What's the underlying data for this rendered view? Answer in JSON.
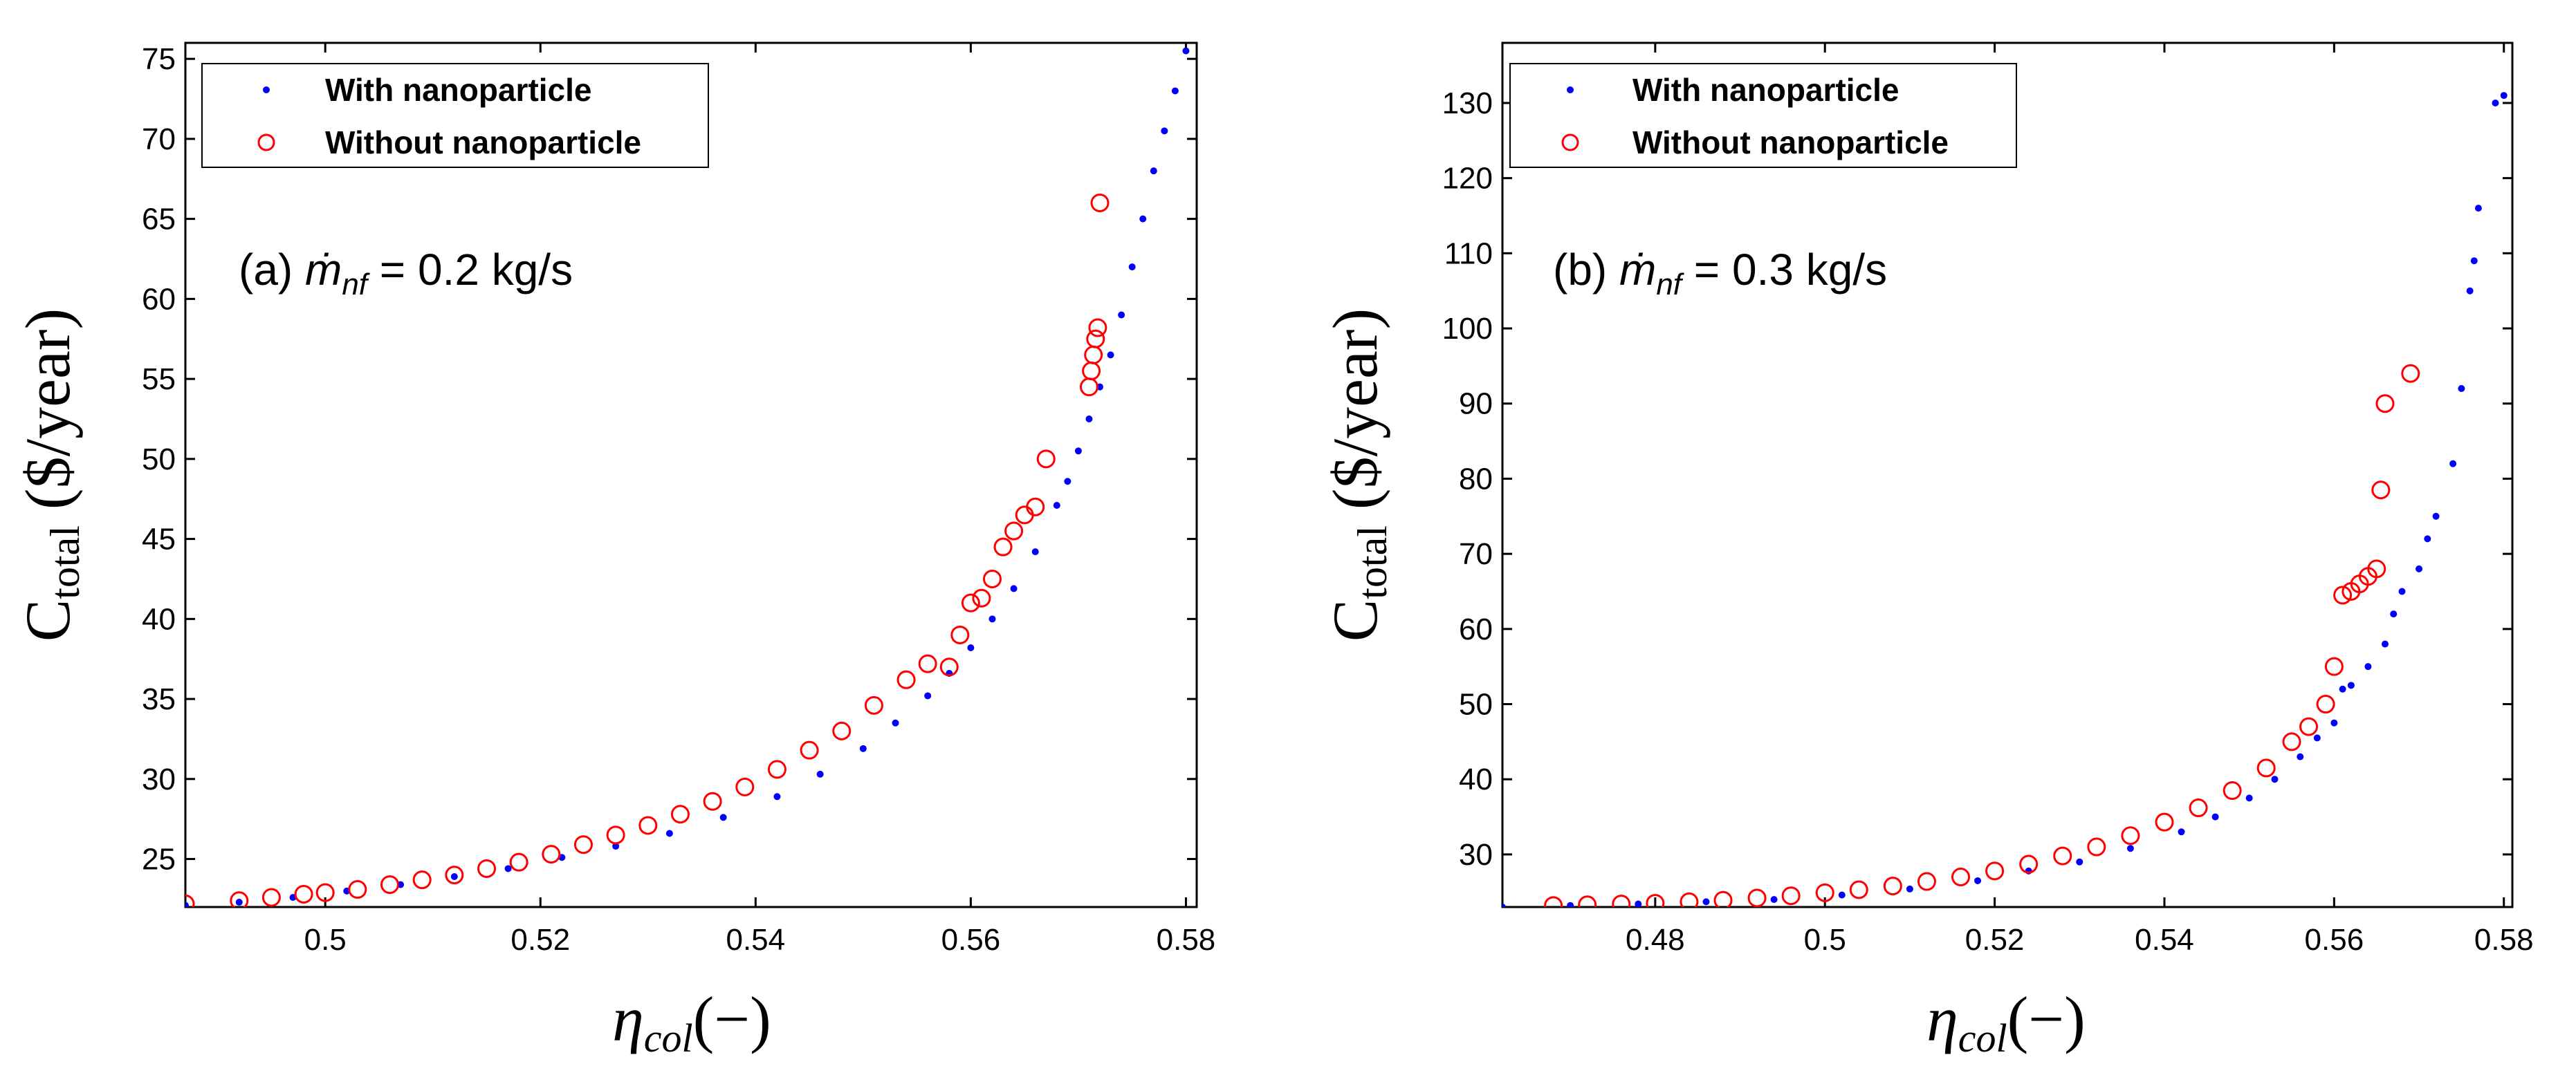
{
  "chart_data": [
    {
      "type": "scatter",
      "panel": "a",
      "annotation": {
        "prefix": "(a) ",
        "symbol": "ṁ",
        "subscript": "nf",
        "suffix": " = 0.2 kg/s"
      },
      "xlabel": {
        "symbol": "η",
        "subscript": "col",
        "unit": "(−)"
      },
      "ylabel": {
        "main": "C",
        "subscript": "total",
        "unit": " ($/year)"
      },
      "xlim": [
        0.487,
        0.581
      ],
      "ylim": [
        22,
        76
      ],
      "xticks": [
        0.5,
        0.52,
        0.54,
        0.56,
        0.58
      ],
      "xtick_labels": [
        "0.5",
        "0.52",
        "0.54",
        "0.56",
        "0.58"
      ],
      "yticks": [
        25,
        30,
        35,
        40,
        45,
        50,
        55,
        60,
        65,
        70,
        75
      ],
      "ytick_labels": [
        "25",
        "30",
        "35",
        "40",
        "45",
        "50",
        "55",
        "60",
        "65",
        "70",
        "75"
      ],
      "legend": [
        "With nanoparticle",
        "Without nanoparticle"
      ],
      "legend_position": "top-left",
      "series": [
        {
          "name": "With nanoparticle",
          "marker": "dot",
          "color": "#0000ff",
          "x": [
            0.487,
            0.492,
            0.497,
            0.502,
            0.507,
            0.512,
            0.517,
            0.522,
            0.527,
            0.532,
            0.537,
            0.542,
            0.546,
            0.55,
            0.553,
            0.556,
            0.558,
            0.56,
            0.562,
            0.564,
            0.566,
            0.568,
            0.569,
            0.57,
            0.571,
            0.572,
            0.573,
            0.574,
            0.575,
            0.576,
            0.577,
            0.578,
            0.579,
            0.58
          ],
          "y": [
            22.1,
            22.3,
            22.6,
            23.0,
            23.4,
            23.9,
            24.4,
            25.1,
            25.8,
            26.6,
            27.6,
            28.9,
            30.3,
            31.9,
            33.5,
            35.2,
            36.6,
            38.2,
            40.0,
            41.9,
            44.2,
            47.1,
            48.6,
            50.5,
            52.5,
            54.5,
            56.5,
            59.0,
            62.0,
            65.0,
            68.0,
            70.5,
            73.0,
            75.5
          ]
        },
        {
          "name": "Without nanoparticle",
          "marker": "circle",
          "color": "#ff0000",
          "x": [
            0.487,
            0.492,
            0.495,
            0.498,
            0.5,
            0.503,
            0.506,
            0.509,
            0.512,
            0.515,
            0.518,
            0.521,
            0.524,
            0.527,
            0.53,
            0.533,
            0.536,
            0.539,
            0.542,
            0.545,
            0.548,
            0.551,
            0.554,
            0.556,
            0.558,
            0.559,
            0.56,
            0.561,
            0.562,
            0.563,
            0.564,
            0.565,
            0.566,
            0.567,
            0.571,
            0.5712,
            0.5714,
            0.5716,
            0.5718,
            0.572
          ],
          "y": [
            22.2,
            22.4,
            22.6,
            22.8,
            22.9,
            23.1,
            23.4,
            23.7,
            24.0,
            24.4,
            24.8,
            25.3,
            25.9,
            26.5,
            27.1,
            27.8,
            28.6,
            29.5,
            30.6,
            31.8,
            33.0,
            34.6,
            36.2,
            37.2,
            37.0,
            39.0,
            41.0,
            41.3,
            42.5,
            44.5,
            45.5,
            46.5,
            47.0,
            50.0,
            54.5,
            55.5,
            56.5,
            57.5,
            58.2,
            66.0
          ]
        }
      ]
    },
    {
      "type": "scatter",
      "panel": "b",
      "annotation": {
        "prefix": "(b) ",
        "symbol": "ṁ",
        "subscript": "nf",
        "suffix": " = 0.3 kg/s"
      },
      "xlabel": {
        "symbol": "η",
        "subscript": "col",
        "unit": "(−)"
      },
      "ylabel": {
        "main": "C",
        "subscript": "total",
        "unit": " ($/year)"
      },
      "xlim": [
        0.462,
        0.581
      ],
      "ylim": [
        23,
        138
      ],
      "xticks": [
        0.48,
        0.5,
        0.52,
        0.54,
        0.56,
        0.58
      ],
      "xtick_labels": [
        "0.48",
        "0.5",
        "0.52",
        "0.54",
        "0.56",
        "0.58"
      ],
      "yticks": [
        30,
        40,
        50,
        60,
        70,
        80,
        90,
        100,
        110,
        120,
        130
      ],
      "ytick_labels": [
        "30",
        "40",
        "50",
        "60",
        "70",
        "80",
        "90",
        "100",
        "110",
        "120",
        "130"
      ],
      "legend": [
        "With nanoparticle",
        "Without nanoparticle"
      ],
      "legend_position": "top-left",
      "series": [
        {
          "name": "With nanoparticle",
          "marker": "dot",
          "color": "#0000ff",
          "x": [
            0.462,
            0.47,
            0.478,
            0.486,
            0.494,
            0.502,
            0.51,
            0.518,
            0.524,
            0.53,
            0.536,
            0.542,
            0.546,
            0.55,
            0.553,
            0.556,
            0.558,
            0.56,
            0.561,
            0.562,
            0.564,
            0.566,
            0.567,
            0.568,
            0.57,
            0.571,
            0.572,
            0.574,
            0.575,
            0.576,
            0.5765,
            0.577,
            0.579,
            0.58
          ],
          "y": [
            23.0,
            23.2,
            23.4,
            23.7,
            24.0,
            24.6,
            25.4,
            26.5,
            27.8,
            29.0,
            30.8,
            33.0,
            35.0,
            37.5,
            40.0,
            43.0,
            45.5,
            47.5,
            52.0,
            52.5,
            55.0,
            58.0,
            62.0,
            65.0,
            68.0,
            72.0,
            75.0,
            82.0,
            92.0,
            105.0,
            109.0,
            116.0,
            130.0,
            131.0
          ]
        },
        {
          "name": "Without nanoparticle",
          "marker": "circle",
          "color": "#ff0000",
          "x": [
            0.468,
            0.472,
            0.476,
            0.48,
            0.484,
            0.488,
            0.492,
            0.496,
            0.5,
            0.504,
            0.508,
            0.512,
            0.516,
            0.52,
            0.524,
            0.528,
            0.532,
            0.536,
            0.54,
            0.544,
            0.548,
            0.552,
            0.555,
            0.557,
            0.559,
            0.56,
            0.561,
            0.562,
            0.563,
            0.564,
            0.565,
            0.5655,
            0.566,
            0.569
          ],
          "y": [
            23.2,
            23.3,
            23.4,
            23.5,
            23.7,
            23.9,
            24.2,
            24.5,
            24.9,
            25.3,
            25.8,
            26.4,
            27.0,
            27.8,
            28.7,
            29.8,
            31.0,
            32.5,
            34.3,
            36.2,
            38.5,
            41.5,
            45.0,
            47.0,
            50.0,
            55.0,
            64.5,
            65.0,
            66.0,
            67.0,
            68.0,
            78.5,
            90.0,
            94.0
          ]
        }
      ]
    }
  ]
}
